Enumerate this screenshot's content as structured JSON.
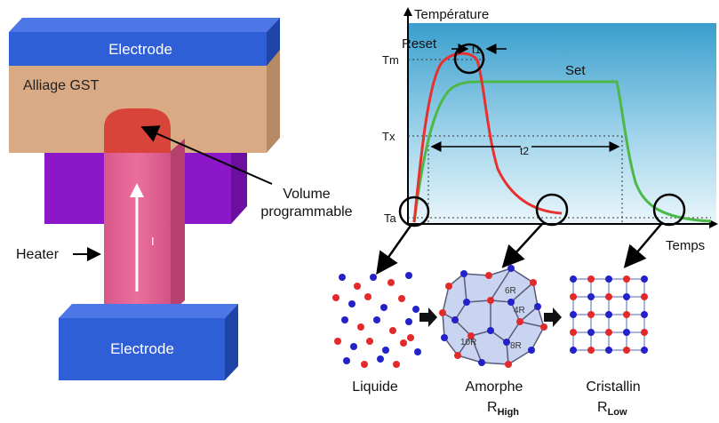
{
  "device": {
    "top_electrode": "Electrode",
    "bottom_electrode": "Electrode",
    "gst_label": "Alliage GST",
    "heater_label": "Heater",
    "current_label": "I",
    "volume_label_line1": "Volume",
    "volume_label_line2": "programmable"
  },
  "chart": {
    "y_axis_label": "Température",
    "x_axis_label": "Temps",
    "reset_label": "Reset",
    "set_label": "Set",
    "t1_label": "t1",
    "t2_label": "t2",
    "tm_label": "Tm",
    "tx_label": "Tx",
    "ta_label": "Ta"
  },
  "phases": {
    "liquid": "Liquide",
    "amorphous": "Amorphe",
    "amorphous_r": "R",
    "amorphous_sub": "High",
    "crystalline": "Cristallin",
    "crystalline_r": "R",
    "crystalline_sub": "Low",
    "ring_labels": [
      "6R",
      "4R",
      "10R",
      "8R"
    ]
  },
  "colors": {
    "electrode": "#2f5fd6",
    "gst": "#d9a983",
    "heater": "#e05d8c",
    "purple": "#8a16c8",
    "reset_curve": "#e8302f",
    "set_curve": "#4cb848",
    "chart_bg_top": "#3fa2cf",
    "chart_bg_bottom": "#e3f3fa",
    "atom_red": "#e22a2a",
    "atom_blue": "#2222c8"
  }
}
